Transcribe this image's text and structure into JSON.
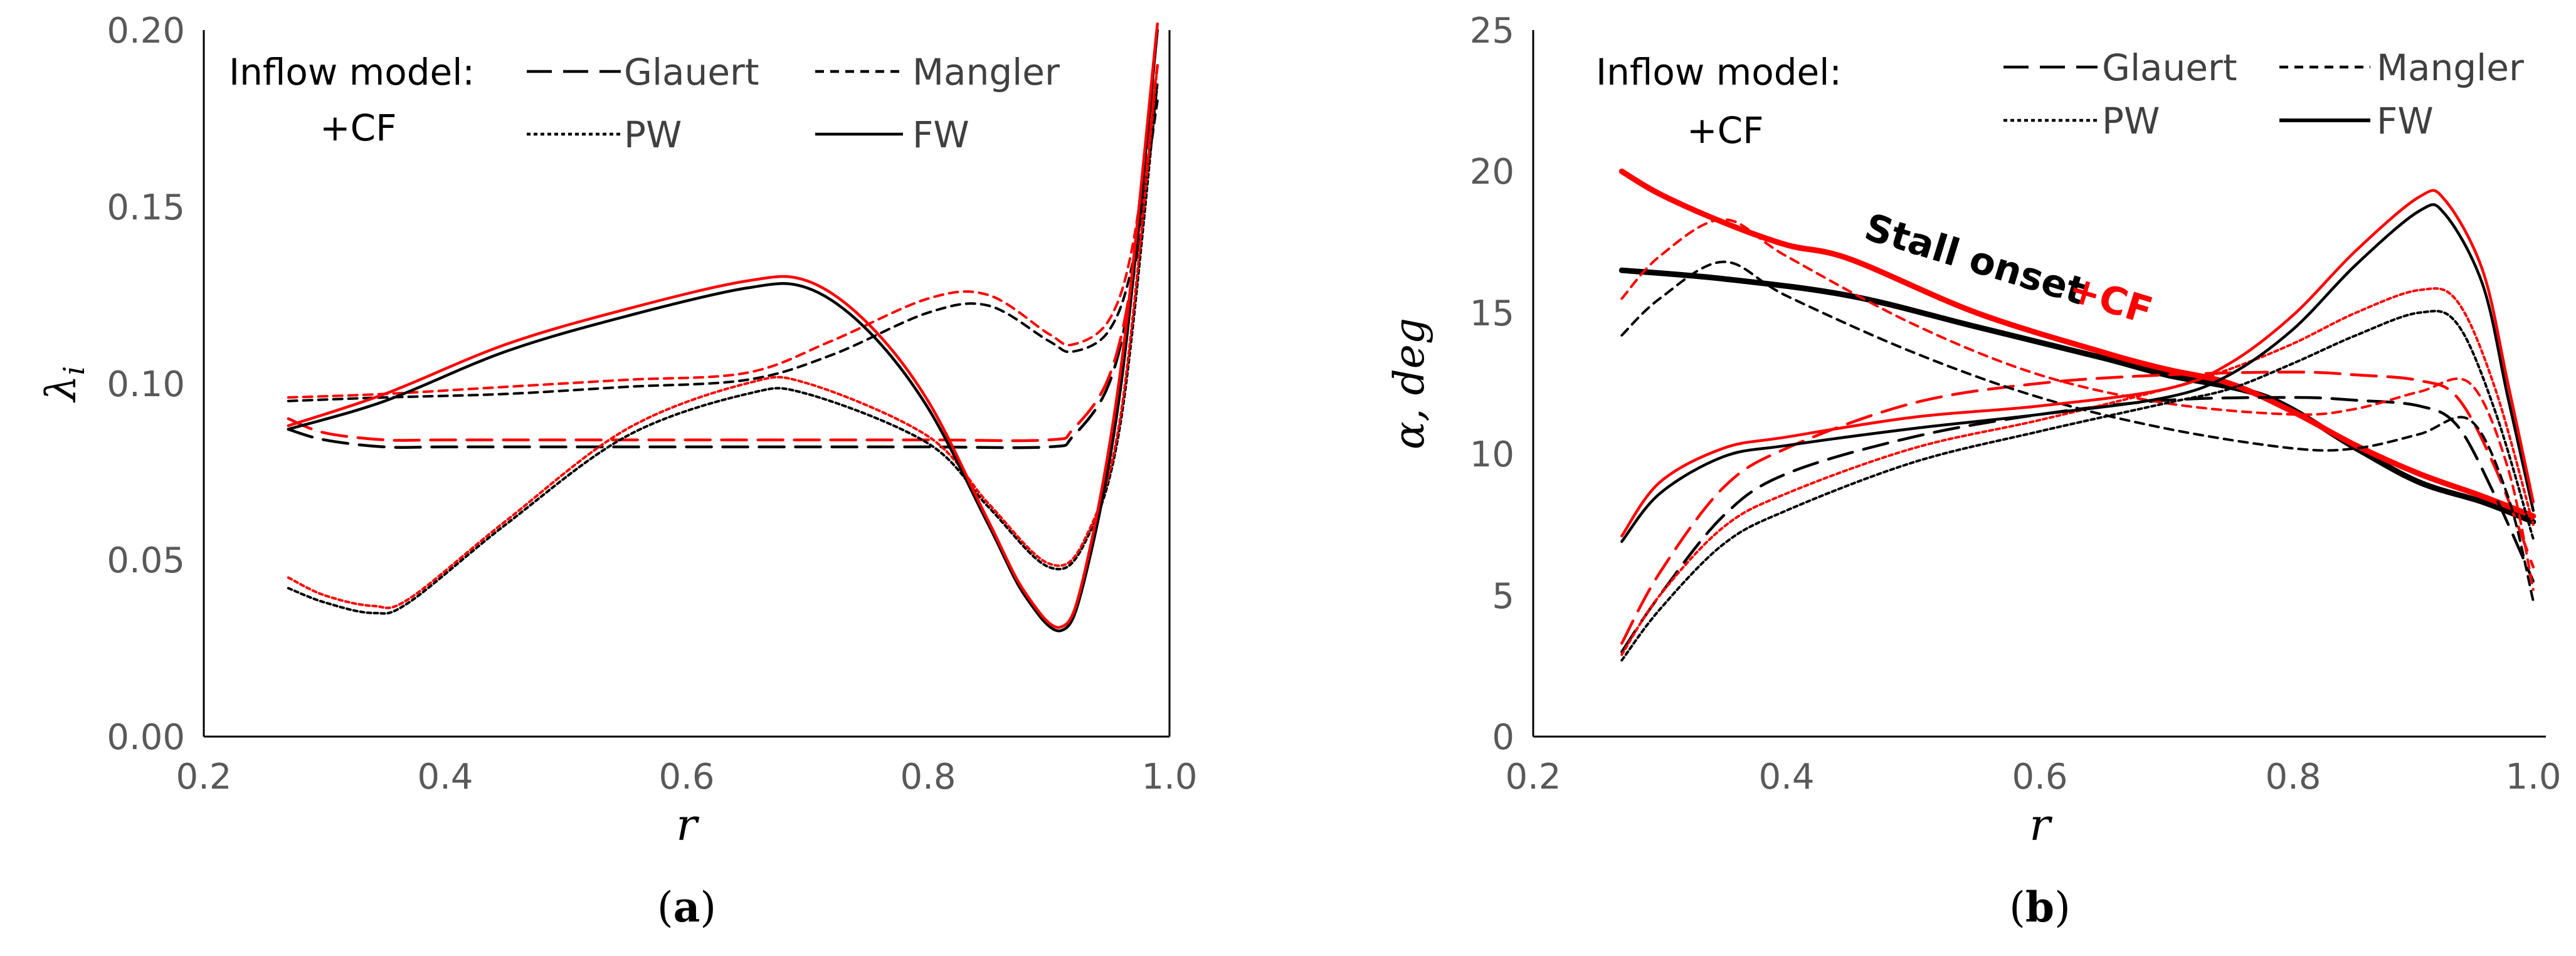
{
  "colors": {
    "base": "#000000",
    "cf": "#ff0000",
    "tick": "#595959",
    "legend_text": "#404040"
  },
  "legend": {
    "title": "Inflow model:",
    "cf_label": "+CF",
    "entries": [
      {
        "name": "Glauert",
        "dash": "long-dash"
      },
      {
        "name": "Mangler",
        "dash": "short-dash"
      },
      {
        "name": "PW",
        "dash": "dot"
      },
      {
        "name": "FW",
        "dash": "solid"
      }
    ]
  },
  "chart_data": [
    {
      "type": "line",
      "panel_label": "a",
      "xlabel": "r",
      "ylabel": "λ",
      "ylabel_sub": "i",
      "xlim": [
        0.2,
        1.0
      ],
      "ylim": [
        0.0,
        0.2
      ],
      "xticks": [
        "0.2",
        "0.4",
        "0.6",
        "0.8",
        "1.0"
      ],
      "yticks": [
        "0.00",
        "0.05",
        "0.10",
        "0.15",
        "0.20"
      ],
      "series": [
        {
          "name": "Glauert",
          "variant": "base",
          "dash": "long-dash",
          "x": [
            0.27,
            0.3,
            0.35,
            0.4,
            0.5,
            0.6,
            0.7,
            0.8,
            0.9,
            0.92,
            0.95,
            0.97,
            0.99
          ],
          "y": [
            0.087,
            0.084,
            0.082,
            0.082,
            0.082,
            0.082,
            0.082,
            0.082,
            0.082,
            0.085,
            0.1,
            0.13,
            0.185
          ]
        },
        {
          "name": "Glauert",
          "variant": "cf",
          "dash": "long-dash",
          "x": [
            0.27,
            0.3,
            0.35,
            0.4,
            0.5,
            0.6,
            0.7,
            0.8,
            0.9,
            0.92,
            0.95,
            0.97,
            0.99
          ],
          "y": [
            0.09,
            0.086,
            0.084,
            0.084,
            0.084,
            0.084,
            0.084,
            0.084,
            0.084,
            0.087,
            0.102,
            0.132,
            0.19
          ]
        },
        {
          "name": "Mangler",
          "variant": "base",
          "dash": "short-dash",
          "x": [
            0.27,
            0.35,
            0.45,
            0.55,
            0.65,
            0.72,
            0.8,
            0.85,
            0.9,
            0.92,
            0.95,
            0.97,
            0.99
          ],
          "y": [
            0.095,
            0.096,
            0.097,
            0.099,
            0.101,
            0.108,
            0.12,
            0.122,
            0.112,
            0.109,
            0.115,
            0.135,
            0.18
          ]
        },
        {
          "name": "Mangler",
          "variant": "cf",
          "dash": "short-dash",
          "x": [
            0.27,
            0.35,
            0.45,
            0.55,
            0.65,
            0.72,
            0.8,
            0.85,
            0.9,
            0.92,
            0.95,
            0.97,
            0.99
          ],
          "y": [
            0.096,
            0.097,
            0.099,
            0.101,
            0.103,
            0.112,
            0.124,
            0.125,
            0.114,
            0.111,
            0.118,
            0.14,
            0.19
          ]
        },
        {
          "name": "PW",
          "variant": "base",
          "dash": "dot",
          "x": [
            0.27,
            0.3,
            0.34,
            0.37,
            0.45,
            0.55,
            0.65,
            0.7,
            0.8,
            0.85,
            0.9,
            0.93,
            0.96,
            0.99
          ],
          "y": [
            0.042,
            0.038,
            0.035,
            0.038,
            0.06,
            0.085,
            0.097,
            0.097,
            0.083,
            0.065,
            0.048,
            0.055,
            0.09,
            0.185
          ]
        },
        {
          "name": "PW",
          "variant": "cf",
          "dash": "dot",
          "x": [
            0.27,
            0.3,
            0.34,
            0.37,
            0.45,
            0.55,
            0.65,
            0.7,
            0.8,
            0.85,
            0.9,
            0.93,
            0.96,
            0.99
          ],
          "y": [
            0.045,
            0.04,
            0.037,
            0.039,
            0.061,
            0.087,
            0.1,
            0.1,
            0.085,
            0.066,
            0.049,
            0.056,
            0.092,
            0.19
          ]
        },
        {
          "name": "FW",
          "variant": "base",
          "dash": "solid",
          "x": [
            0.27,
            0.35,
            0.45,
            0.55,
            0.65,
            0.7,
            0.75,
            0.8,
            0.85,
            0.88,
            0.91,
            0.93,
            0.96,
            0.99
          ],
          "y": [
            0.087,
            0.095,
            0.109,
            0.119,
            0.127,
            0.127,
            0.115,
            0.093,
            0.06,
            0.04,
            0.03,
            0.045,
            0.1,
            0.2
          ]
        },
        {
          "name": "FW",
          "variant": "cf",
          "dash": "solid",
          "x": [
            0.27,
            0.35,
            0.45,
            0.55,
            0.65,
            0.7,
            0.75,
            0.8,
            0.85,
            0.88,
            0.91,
            0.93,
            0.96,
            0.99
          ],
          "y": [
            0.088,
            0.097,
            0.111,
            0.121,
            0.129,
            0.129,
            0.117,
            0.095,
            0.061,
            0.041,
            0.031,
            0.047,
            0.105,
            0.205
          ]
        }
      ]
    },
    {
      "type": "line",
      "panel_label": "b",
      "xlabel": "r",
      "ylabel": "α, deg",
      "xlim": [
        0.2,
        1.0
      ],
      "ylim": [
        0,
        25
      ],
      "xticks": [
        "0.2",
        "0.4",
        "0.6",
        "0.8",
        "1.0"
      ],
      "yticks": [
        "0",
        "5",
        "10",
        "15",
        "20",
        "25"
      ],
      "annotation": {
        "text": "Stall onset",
        "cf_text": "+CF"
      },
      "series": [
        {
          "name": "Stall onset",
          "variant": "base",
          "dash": "solid-thick",
          "x": [
            0.27,
            0.35,
            0.45,
            0.55,
            0.65,
            0.7,
            0.78,
            0.85,
            0.9,
            0.95,
            0.99
          ],
          "y": [
            16.5,
            16.2,
            15.6,
            14.5,
            13.4,
            12.8,
            12.0,
            10.2,
            9.0,
            8.3,
            7.6
          ]
        },
        {
          "name": "Stall onset",
          "variant": "cf",
          "dash": "solid-thick",
          "x": [
            0.27,
            0.3,
            0.35,
            0.4,
            0.45,
            0.55,
            0.65,
            0.7,
            0.75,
            0.8,
            0.85,
            0.9,
            0.95,
            0.99
          ],
          "y": [
            20.0,
            19.2,
            18.2,
            17.4,
            16.9,
            15.0,
            13.6,
            13.0,
            12.5,
            11.5,
            10.3,
            9.3,
            8.5,
            7.8
          ]
        },
        {
          "name": "Glauert",
          "variant": "base",
          "dash": "long-dash",
          "x": [
            0.27,
            0.3,
            0.35,
            0.4,
            0.5,
            0.6,
            0.7,
            0.8,
            0.85,
            0.9,
            0.93,
            0.96,
            0.99
          ],
          "y": [
            3.0,
            5.0,
            7.8,
            9.3,
            10.6,
            11.4,
            11.9,
            12.0,
            11.9,
            11.7,
            11.0,
            8.5,
            5.5
          ]
        },
        {
          "name": "Glauert",
          "variant": "cf",
          "dash": "long-dash",
          "x": [
            0.27,
            0.3,
            0.35,
            0.4,
            0.5,
            0.6,
            0.7,
            0.8,
            0.85,
            0.9,
            0.93,
            0.96,
            0.99
          ],
          "y": [
            3.3,
            5.8,
            8.8,
            10.2,
            11.8,
            12.5,
            12.8,
            12.9,
            12.8,
            12.6,
            12.0,
            9.5,
            6.0
          ]
        },
        {
          "name": "Mangler",
          "variant": "base",
          "dash": "short-dash",
          "x": [
            0.27,
            0.3,
            0.35,
            0.4,
            0.5,
            0.6,
            0.7,
            0.8,
            0.85,
            0.9,
            0.94,
            0.97,
            0.99
          ],
          "y": [
            14.2,
            15.5,
            16.8,
            15.6,
            13.6,
            12.0,
            10.9,
            10.2,
            10.2,
            10.7,
            11.2,
            8.5,
            4.8
          ]
        },
        {
          "name": "Mangler",
          "variant": "cf",
          "dash": "short-dash",
          "x": [
            0.27,
            0.3,
            0.35,
            0.4,
            0.5,
            0.6,
            0.7,
            0.8,
            0.85,
            0.9,
            0.94,
            0.97,
            0.99
          ],
          "y": [
            15.5,
            17.0,
            18.3,
            17.0,
            14.6,
            12.8,
            11.8,
            11.4,
            11.6,
            12.2,
            12.5,
            9.5,
            5.2
          ]
        },
        {
          "name": "PW",
          "variant": "base",
          "dash": "dot",
          "x": [
            0.27,
            0.3,
            0.35,
            0.4,
            0.5,
            0.6,
            0.7,
            0.75,
            0.8,
            0.85,
            0.9,
            0.93,
            0.96,
            0.99
          ],
          "y": [
            2.7,
            4.5,
            6.8,
            8.0,
            9.7,
            10.8,
            11.8,
            12.3,
            13.2,
            14.2,
            15.0,
            14.6,
            11.5,
            7.0
          ]
        },
        {
          "name": "PW",
          "variant": "cf",
          "dash": "dot",
          "x": [
            0.27,
            0.3,
            0.35,
            0.4,
            0.5,
            0.6,
            0.7,
            0.75,
            0.8,
            0.85,
            0.9,
            0.93,
            0.96,
            0.99
          ],
          "y": [
            2.9,
            5.0,
            7.4,
            8.6,
            10.2,
            11.2,
            12.3,
            13.0,
            13.9,
            15.0,
            15.8,
            15.4,
            12.3,
            7.5
          ]
        },
        {
          "name": "FW",
          "variant": "base",
          "dash": "solid",
          "x": [
            0.27,
            0.3,
            0.35,
            0.4,
            0.5,
            0.6,
            0.7,
            0.75,
            0.8,
            0.85,
            0.9,
            0.92,
            0.95,
            0.97,
            0.99
          ],
          "y": [
            6.9,
            8.6,
            9.9,
            10.3,
            10.9,
            11.4,
            12.0,
            12.8,
            14.4,
            16.7,
            18.6,
            18.5,
            16.0,
            12.0,
            8.0
          ]
        },
        {
          "name": "FW",
          "variant": "cf",
          "dash": "solid",
          "x": [
            0.27,
            0.3,
            0.35,
            0.4,
            0.5,
            0.6,
            0.7,
            0.75,
            0.8,
            0.85,
            0.9,
            0.92,
            0.95,
            0.97,
            0.99
          ],
          "y": [
            7.1,
            9.0,
            10.2,
            10.6,
            11.3,
            11.7,
            12.3,
            13.2,
            14.9,
            17.2,
            19.1,
            19.0,
            16.5,
            12.5,
            8.3
          ]
        }
      ]
    }
  ]
}
